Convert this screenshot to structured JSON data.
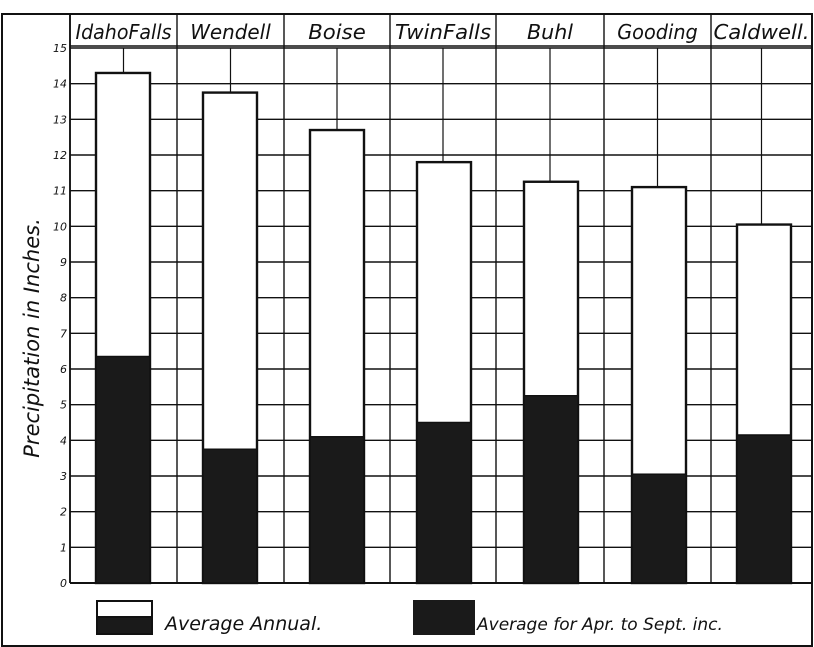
{
  "chart_data": {
    "type": "bar",
    "ylabel": "Precipitation in Inches.",
    "ylim": [
      0,
      15
    ],
    "yticks": [
      "0",
      "1",
      "2",
      "3",
      "4",
      "5",
      "6",
      "7",
      "8",
      "9",
      "10",
      "11",
      "12",
      "13",
      "14",
      "15"
    ],
    "categories": [
      "IdahoFalls",
      "Wendell",
      "Boise",
      "TwinFalls",
      "Buhl",
      "Gooding",
      "Caldwell."
    ],
    "series": [
      {
        "name": "Average Annual.",
        "values": [
          14.3,
          13.75,
          12.7,
          11.8,
          11.25,
          11.1,
          10.05
        ]
      },
      {
        "name": "Average for Apr. to Sept. inc.",
        "values": [
          6.35,
          3.75,
          4.1,
          4.5,
          5.25,
          3.05,
          4.15
        ]
      }
    ],
    "grid": true,
    "legend_position": "bottom"
  },
  "colors": {
    "annual": "#ffffff",
    "season": "#1a1a1a",
    "ink": "#111111"
  }
}
